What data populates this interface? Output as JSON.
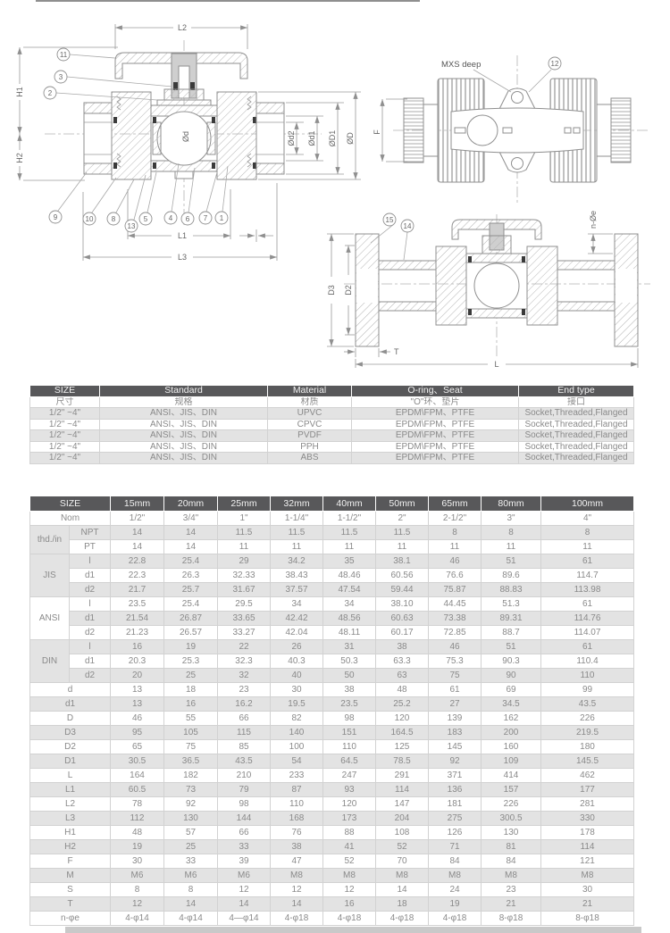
{
  "drawings": {
    "main_view": {
      "dim_labels": {
        "L2": "L2",
        "H1": "H1",
        "H2": "H2",
        "L1": "L1",
        "L3": "L3",
        "bore": "Ød",
        "od2": "Ød2",
        "od1": "Ød1",
        "oD1": "ØD1",
        "oD": "ØD"
      },
      "callouts": {
        "c1": "1",
        "c2": "2",
        "c3": "3",
        "c4": "4",
        "c5": "5",
        "c6": "6",
        "c7": "7",
        "c8": "8",
        "c9": "9",
        "c10": "10",
        "c11": "11",
        "c13": "13"
      }
    },
    "top_view": {
      "mxs_label": "MXS deep",
      "callout_12": "12",
      "dim_F": "F"
    },
    "flanged_view": {
      "callout_14": "14",
      "callout_15": "15",
      "dim_D3": "D3",
      "dim_D2": "D2",
      "dim_T": "T",
      "dim_L": "L",
      "dim_ne": "n-Øe"
    }
  },
  "spec_table": {
    "headers_en": [
      "SIZE",
      "Standard",
      "Material",
      "O-ring、Seat",
      "End type"
    ],
    "headers_cn": [
      "尺寸",
      "规格",
      "材质",
      "\"O\"环、垫片",
      "接口"
    ],
    "rows": [
      [
        "1/2\" ~4\"",
        "ANSI、JIS、DIN",
        "UPVC",
        "EPDM\\FPM、PTFE",
        "Socket,Threaded,Flanged"
      ],
      [
        "1/2\" ~4\"",
        "ANSI、JIS、DIN",
        "CPVC",
        "EPDM\\FPM、PTFE",
        "Socket,Threaded,Flanged"
      ],
      [
        "1/2\" ~4\"",
        "ANSI、JIS、DIN",
        "PVDF",
        "EPDM\\FPM、PTFE",
        "Socket,Threaded,Flanged"
      ],
      [
        "1/2\" ~4\"",
        "ANSI、JIS、DIN",
        "PPH",
        "EPDM\\FPM、PTFE",
        "Socket,Threaded,Flanged"
      ],
      [
        "1/2\" ~4\"",
        "ANSI、JIS、DIN",
        "ABS",
        "EPDM\\FPM、PTFE",
        "Socket,Threaded,Flanged"
      ]
    ]
  },
  "dim_table": {
    "header": [
      "SIZE",
      "15mm",
      "20mm",
      "25mm",
      "32mm",
      "40mm",
      "50mm",
      "65mm",
      "80mm",
      "100mm"
    ],
    "nom_row": {
      "label": "Nom",
      "values": [
        "1/2\"",
        "3/4\"",
        "1\"",
        "1-1/4\"",
        "1-1/2\"",
        "2\"",
        "2-1/2\"",
        "3\"",
        "4\""
      ]
    },
    "groups": [
      {
        "label": "thd./in",
        "rows": [
          {
            "label": "NPT",
            "values": [
              "14",
              "14",
              "11.5",
              "11.5",
              "11.5",
              "11.5",
              "8",
              "8",
              "8"
            ]
          },
          {
            "label": "PT",
            "values": [
              "14",
              "14",
              "11",
              "11",
              "11",
              "11",
              "11",
              "11",
              "11"
            ]
          }
        ]
      },
      {
        "label": "JIS",
        "rows": [
          {
            "label": "l",
            "values": [
              "22.8",
              "25.4",
              "29",
              "34.2",
              "35",
              "38.1",
              "46",
              "51",
              "61"
            ]
          },
          {
            "label": "d1",
            "values": [
              "22.3",
              "26.3",
              "32.33",
              "38.43",
              "48.46",
              "60.56",
              "76.6",
              "89.6",
              "114.7"
            ]
          },
          {
            "label": "d2",
            "values": [
              "21.7",
              "25.7",
              "31.67",
              "37.57",
              "47.54",
              "59.44",
              "75.87",
              "88.83",
              "113.98"
            ]
          }
        ]
      },
      {
        "label": "ANSI",
        "rows": [
          {
            "label": "l",
            "values": [
              "23.5",
              "25.4",
              "29.5",
              "34",
              "34",
              "38.10",
              "44.45",
              "51.3",
              "61"
            ]
          },
          {
            "label": "d1",
            "values": [
              "21.54",
              "26.87",
              "33.65",
              "42.42",
              "48.56",
              "60.63",
              "73.38",
              "89.31",
              "114.76"
            ]
          },
          {
            "label": "d2",
            "values": [
              "21.23",
              "26.57",
              "33.27",
              "42.04",
              "48.11",
              "60.17",
              "72.85",
              "88.7",
              "114.07"
            ]
          }
        ]
      },
      {
        "label": "DIN",
        "rows": [
          {
            "label": "l",
            "values": [
              "16",
              "19",
              "22",
              "26",
              "31",
              "38",
              "46",
              "51",
              "61"
            ]
          },
          {
            "label": "d1",
            "values": [
              "20.3",
              "25.3",
              "32.3",
              "40.3",
              "50.3",
              "63.3",
              "75.3",
              "90.3",
              "110.4"
            ]
          },
          {
            "label": "d2",
            "values": [
              "20",
              "25",
              "32",
              "40",
              "50",
              "63",
              "75",
              "90",
              "110"
            ]
          }
        ]
      }
    ],
    "rows": [
      {
        "label": "d",
        "values": [
          "13",
          "18",
          "23",
          "30",
          "38",
          "48",
          "61",
          "69",
          "99"
        ]
      },
      {
        "label": "d1",
        "values": [
          "13",
          "16",
          "16.2",
          "19.5",
          "23.5",
          "25.2",
          "27",
          "34.5",
          "43.5"
        ]
      },
      {
        "label": "D",
        "values": [
          "46",
          "55",
          "66",
          "82",
          "98",
          "120",
          "139",
          "162",
          "226"
        ]
      },
      {
        "label": "D3",
        "values": [
          "95",
          "105",
          "115",
          "140",
          "151",
          "164.5",
          "183",
          "200",
          "219.5"
        ]
      },
      {
        "label": "D2",
        "values": [
          "65",
          "75",
          "85",
          "100",
          "110",
          "125",
          "145",
          "160",
          "180"
        ]
      },
      {
        "label": "D1",
        "values": [
          "30.5",
          "36.5",
          "43.5",
          "54",
          "64.5",
          "78.5",
          "92",
          "109",
          "145.5"
        ]
      },
      {
        "label": "L",
        "values": [
          "164",
          "182",
          "210",
          "233",
          "247",
          "291",
          "371",
          "414",
          "462"
        ]
      },
      {
        "label": "L1",
        "values": [
          "60.5",
          "73",
          "79",
          "87",
          "93",
          "114",
          "136",
          "157",
          "177"
        ]
      },
      {
        "label": "L2",
        "values": [
          "78",
          "92",
          "98",
          "110",
          "120",
          "147",
          "181",
          "226",
          "281"
        ]
      },
      {
        "label": "L3",
        "values": [
          "112",
          "130",
          "144",
          "168",
          "173",
          "204",
          "275",
          "300.5",
          "330"
        ]
      },
      {
        "label": "H1",
        "values": [
          "48",
          "57",
          "66",
          "76",
          "88",
          "108",
          "126",
          "130",
          "178"
        ]
      },
      {
        "label": "H2",
        "values": [
          "19",
          "25",
          "33",
          "38",
          "41",
          "52",
          "71",
          "81",
          "114"
        ]
      },
      {
        "label": "F",
        "values": [
          "30",
          "33",
          "39",
          "47",
          "52",
          "70",
          "84",
          "84",
          "121"
        ]
      },
      {
        "label": "M",
        "values": [
          "M6",
          "M6",
          "M6",
          "M8",
          "M8",
          "M8",
          "M8",
          "M8",
          "M8"
        ]
      },
      {
        "label": "S",
        "values": [
          "8",
          "8",
          "12",
          "12",
          "12",
          "14",
          "24",
          "23",
          "30"
        ]
      },
      {
        "label": "T",
        "values": [
          "12",
          "14",
          "14",
          "14",
          "16",
          "18",
          "19",
          "21",
          "21"
        ]
      },
      {
        "label": "n-φe",
        "values": [
          "4-φ14",
          "4-φ14",
          "4—φ14",
          "4-φ18",
          "4-φ18",
          "4-φ18",
          "4-φ18",
          "8-φ18",
          "8-φ18"
        ]
      }
    ]
  },
  "colors": {
    "header_bg": "#58585a",
    "stripe": "#e3e3e3",
    "line": "#8f8f8f",
    "text": "#8a8a8a"
  }
}
